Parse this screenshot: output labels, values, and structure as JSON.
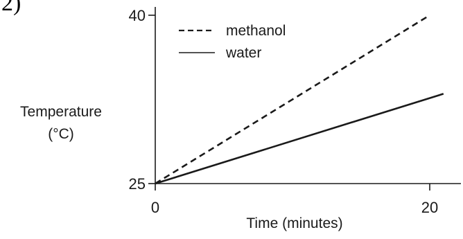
{
  "corner_label": "2)",
  "chart_data": {
    "type": "line",
    "title": "",
    "xlabel": "Time (minutes)",
    "ylabel_line1": "Temperature",
    "ylabel_line2": "(°C)",
    "xlim": [
      0,
      21
    ],
    "ylim": [
      25,
      40
    ],
    "x_ticks": [
      0,
      20
    ],
    "x_tick_labels": [
      "0",
      "20"
    ],
    "y_ticks": [
      25,
      40
    ],
    "y_tick_labels": [
      "25",
      "40"
    ],
    "grid": false,
    "legend_position": "top-left",
    "series": [
      {
        "name": "methanol",
        "style": "dashed",
        "color": "#1a1a1a",
        "x": [
          0,
          20
        ],
        "y": [
          25,
          40
        ]
      },
      {
        "name": "water",
        "style": "solid",
        "color": "#1a1a1a",
        "x": [
          0,
          21
        ],
        "y": [
          25,
          33
        ]
      }
    ]
  }
}
